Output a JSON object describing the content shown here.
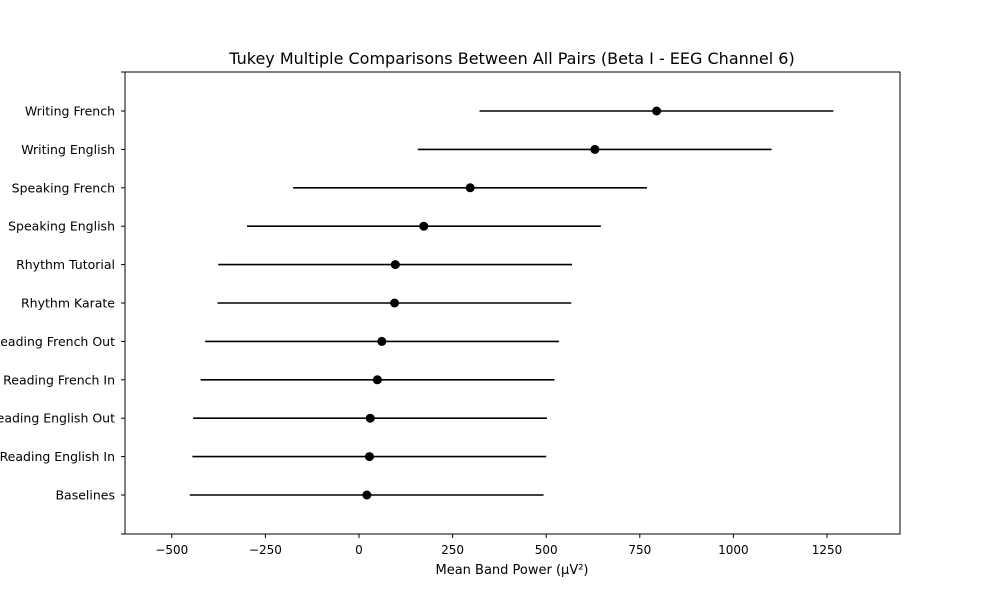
{
  "chart_data": {
    "type": "errorbar",
    "title": "Tukey Multiple Comparisons Between All Pairs (Beta I - EEG Channel 6)",
    "xlabel": "Mean Band Power (µV²)",
    "ylabel": "",
    "xlim": [
      -625,
      1445
    ],
    "xticks": [
      -500,
      -250,
      0,
      250,
      500,
      750,
      1000,
      1250
    ],
    "xtick_labels": [
      "−500",
      "−250",
      "0",
      "250",
      "500",
      "750",
      "1000",
      "1250"
    ],
    "grid": false,
    "colors": {
      "marker": "#000000",
      "line": "#000000"
    },
    "groups": [
      {
        "label": "Writing French",
        "mean": 795,
        "lower": 322,
        "upper": 1267
      },
      {
        "label": "Writing English",
        "mean": 630,
        "lower": 157,
        "upper": 1102
      },
      {
        "label": "Speaking French",
        "mean": 297,
        "lower": -176,
        "upper": 769
      },
      {
        "label": "Speaking English",
        "mean": 173,
        "lower": -299,
        "upper": 646
      },
      {
        "label": "Rhythm Tutorial",
        "mean": 97,
        "lower": -376,
        "upper": 569
      },
      {
        "label": "Rhythm Karate",
        "mean": 95,
        "lower": -378,
        "upper": 567
      },
      {
        "label": "Reading French Out",
        "mean": 61,
        "lower": -411,
        "upper": 534
      },
      {
        "label": "Reading French In",
        "mean": 49,
        "lower": -423,
        "upper": 522
      },
      {
        "label": "Reading English Out",
        "mean": 30,
        "lower": -443,
        "upper": 502
      },
      {
        "label": "Reading English In",
        "mean": 28,
        "lower": -445,
        "upper": 500
      },
      {
        "label": "Baselines",
        "mean": 21,
        "lower": -452,
        "upper": 493
      }
    ]
  }
}
